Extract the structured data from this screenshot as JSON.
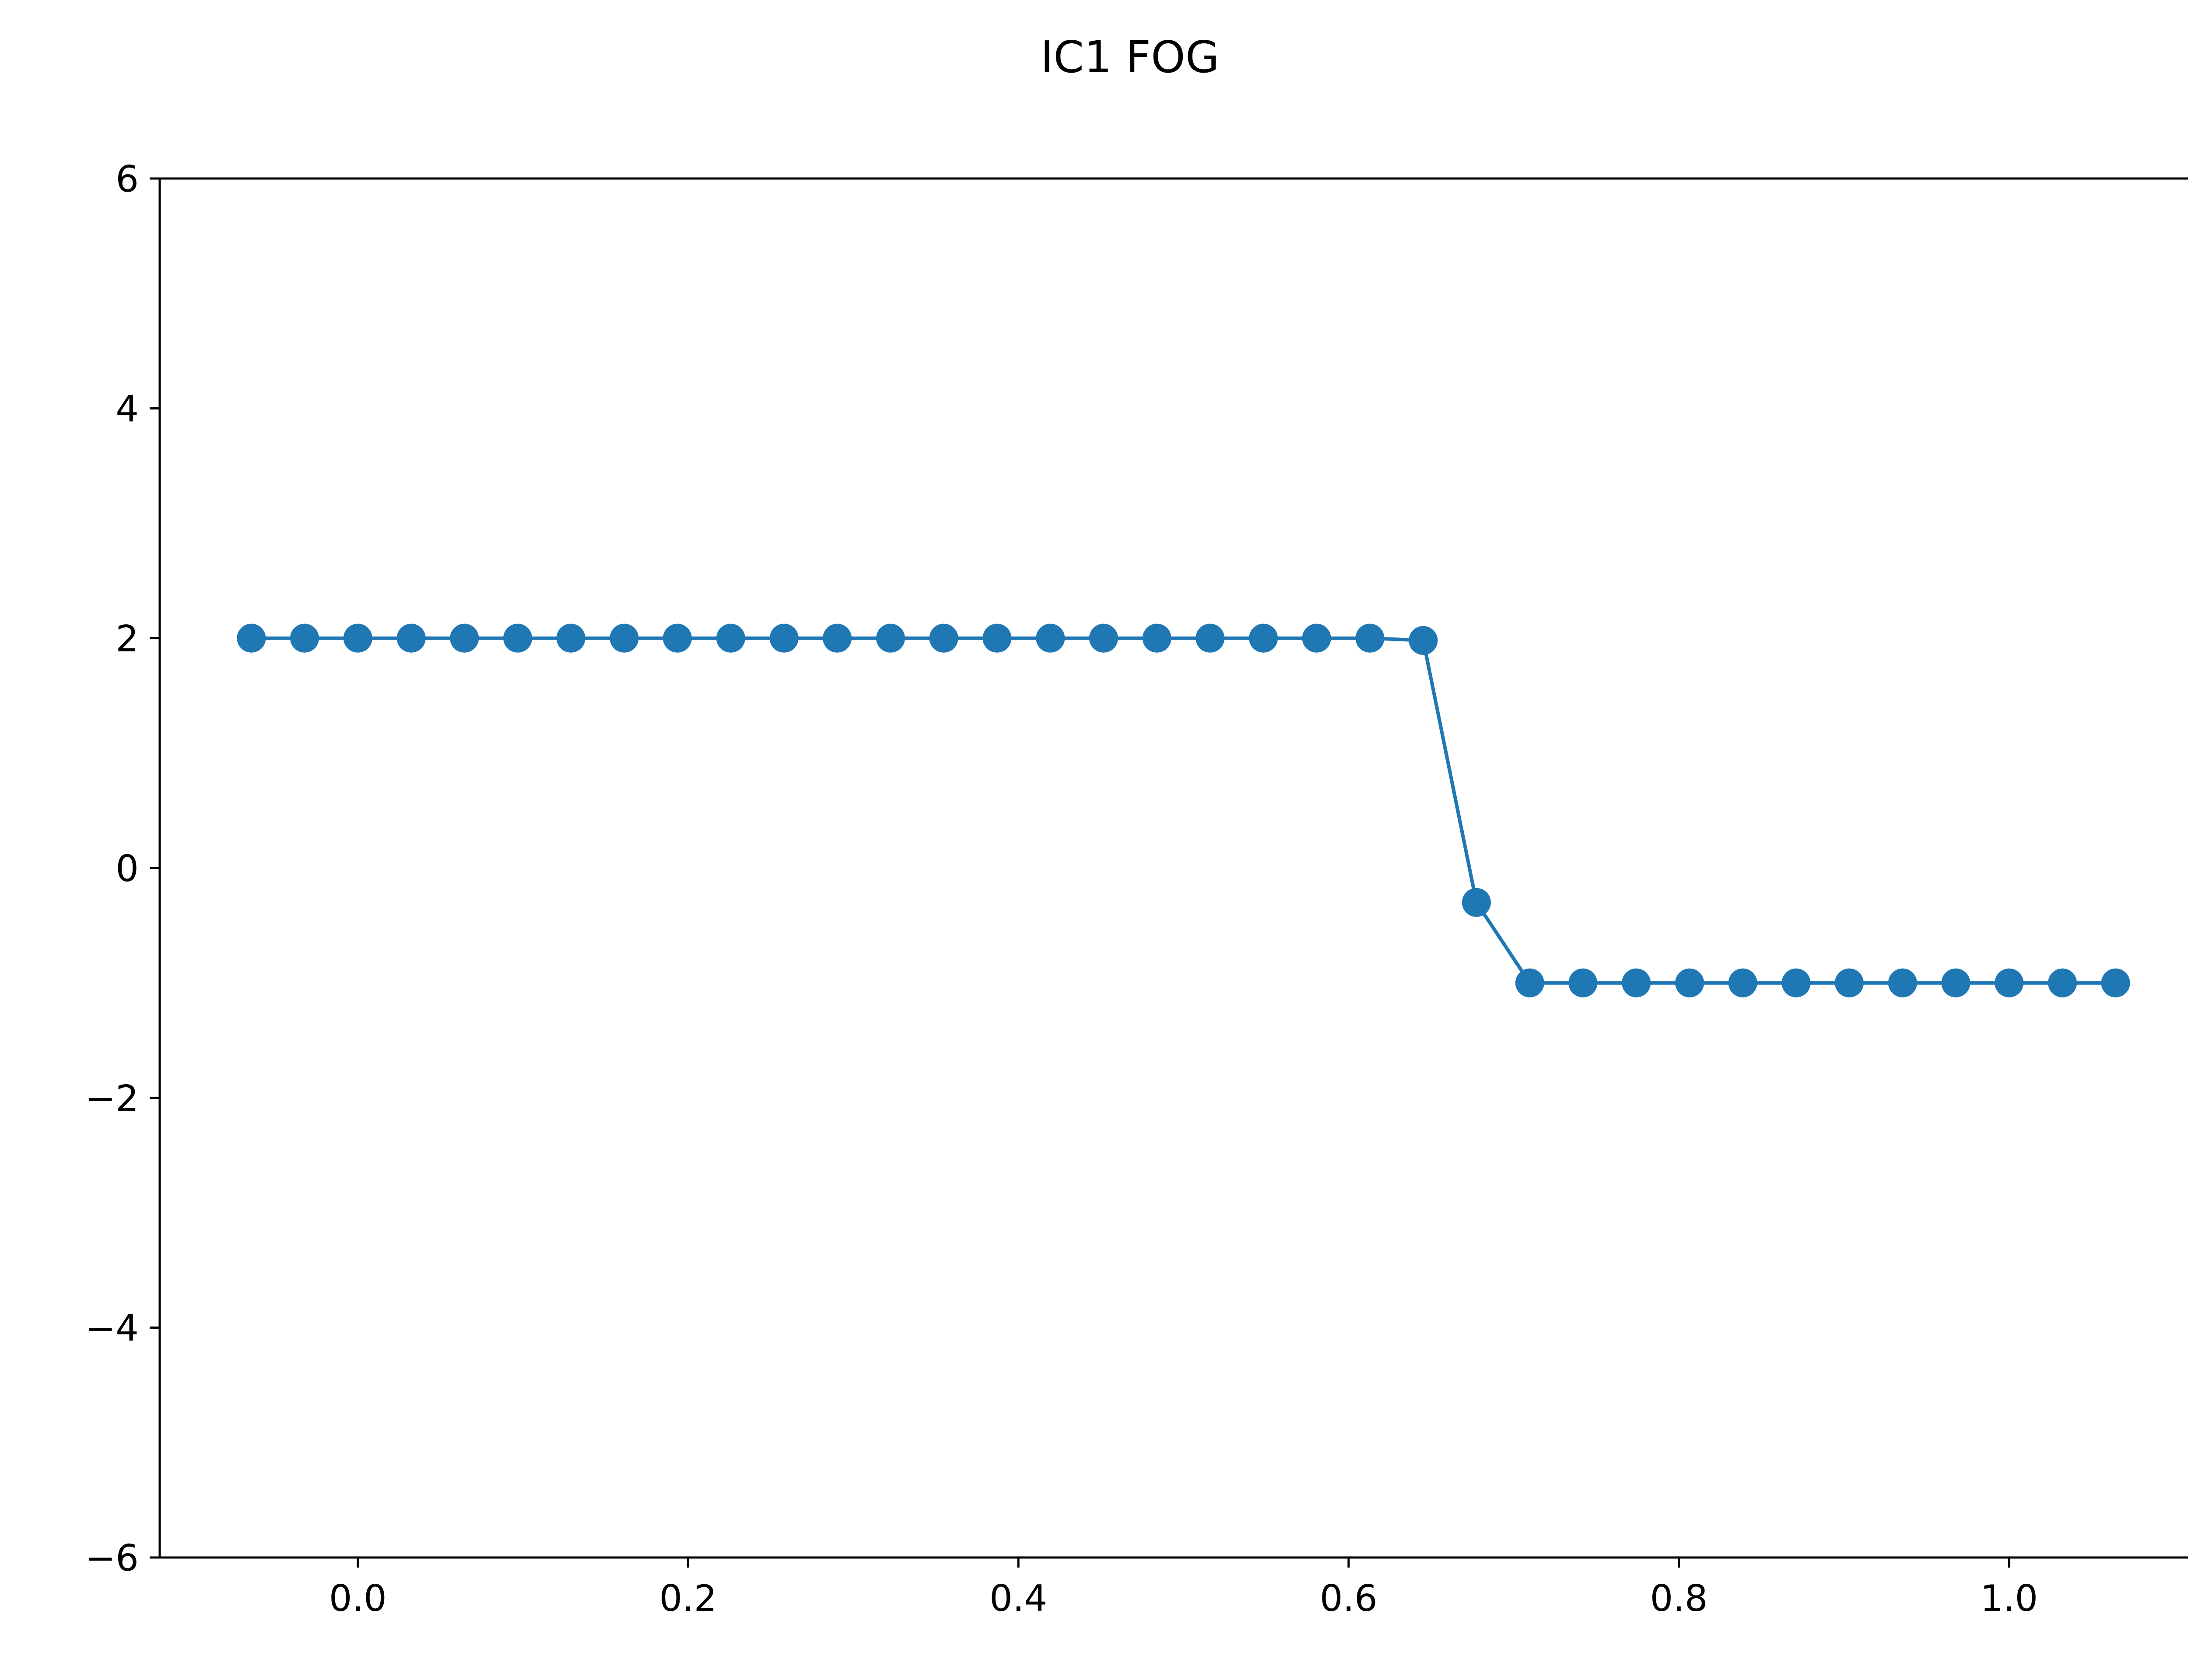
{
  "chart_data": {
    "type": "line",
    "title": "IC1 FOG",
    "xlabel": "",
    "ylabel": "",
    "xlim": [
      -0.12,
      1.12
    ],
    "ylim": [
      -6,
      6
    ],
    "grid": false,
    "x_ticks": [
      0.0,
      0.2,
      0.4,
      0.6,
      0.8,
      1.0
    ],
    "x_tick_labels": [
      "0.0",
      "0.2",
      "0.4",
      "0.6",
      "0.8",
      "1.0"
    ],
    "y_ticks": [
      -6,
      -4,
      -2,
      0,
      2,
      4,
      6
    ],
    "y_tick_labels": [
      "−6",
      "−4",
      "−2",
      "0",
      "2",
      "4",
      "6"
    ],
    "colors": {
      "series": "#1f77b4",
      "axes": "#000000"
    },
    "series": [
      {
        "marker": "circle",
        "x": [
          -0.0645,
          -0.0323,
          0.0,
          0.0323,
          0.0645,
          0.0968,
          0.129,
          0.1613,
          0.1935,
          0.2258,
          0.2581,
          0.2903,
          0.3226,
          0.3548,
          0.3871,
          0.4194,
          0.4516,
          0.4839,
          0.5161,
          0.5484,
          0.5806,
          0.6129,
          0.6452,
          0.6774,
          0.7097,
          0.7419,
          0.7742,
          0.8065,
          0.8387,
          0.871,
          0.9032,
          0.9355,
          0.9677,
          1.0,
          1.0323,
          1.0645
        ],
        "y": [
          2,
          2,
          2,
          2,
          2,
          2,
          2,
          2,
          2,
          2,
          2,
          2,
          2,
          2,
          2,
          2,
          2,
          2,
          2,
          2,
          2,
          2,
          1.98,
          -0.3,
          -1,
          -1,
          -1,
          -1,
          -1,
          -1,
          -1,
          -1,
          -1,
          -1,
          -1,
          -1
        ]
      }
    ]
  }
}
